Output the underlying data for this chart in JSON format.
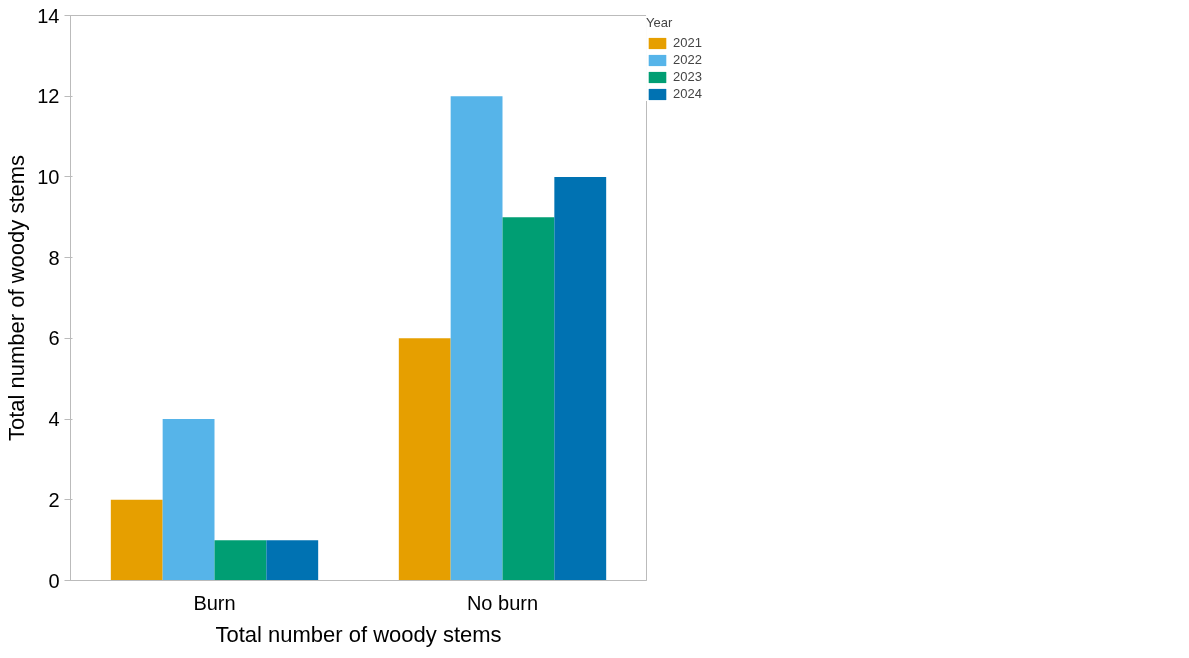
{
  "chart_data": {
    "type": "bar",
    "xlabel": "Total number of woody stems",
    "ylabel": "Total number of woody stems",
    "legend_title": "Year",
    "categories": [
      "Burn",
      "No burn"
    ],
    "series": [
      {
        "name": "2021",
        "color": "#e69f00",
        "values": [
          2,
          6
        ]
      },
      {
        "name": "2022",
        "color": "#56b4e9",
        "values": [
          4,
          12
        ]
      },
      {
        "name": "2023",
        "color": "#009e73",
        "values": [
          1,
          9
        ]
      },
      {
        "name": "2024",
        "color": "#0072b2",
        "values": [
          1,
          10
        ]
      }
    ],
    "ylim": [
      0,
      14
    ],
    "yticks": [
      0,
      2,
      4,
      6,
      8,
      10,
      12,
      14
    ],
    "grid": false,
    "legend": "top right"
  }
}
